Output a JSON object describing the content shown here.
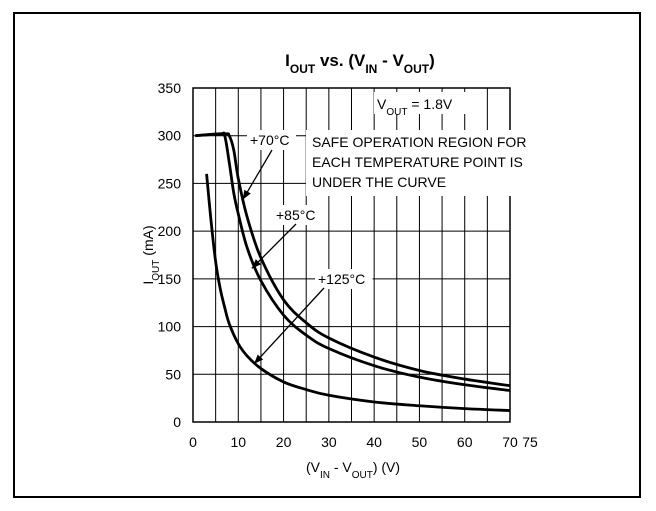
{
  "chart_data": {
    "type": "line",
    "title": {
      "segments": [
        {
          "t": "I",
          "sub": false
        },
        {
          "t": "OUT",
          "sub": true
        },
        {
          "t": " vs. (V",
          "sub": false
        },
        {
          "t": "IN",
          "sub": true
        },
        {
          "t": " - V",
          "sub": false
        },
        {
          "t": "OUT",
          "sub": true
        },
        {
          "t": ")",
          "sub": false
        }
      ]
    },
    "xlabel": {
      "segments": [
        {
          "t": "(V",
          "sub": false
        },
        {
          "t": "IN",
          "sub": true
        },
        {
          "t": " - V",
          "sub": false
        },
        {
          "t": "OUT",
          "sub": true
        },
        {
          "t": ") (V)",
          "sub": false
        }
      ]
    },
    "ylabel": {
      "segments": [
        {
          "t": "I",
          "sub": false
        },
        {
          "t": "OUT",
          "sub": true
        },
        {
          "t": " (mA)",
          "sub": false
        }
      ]
    },
    "xlim": [
      0,
      70
    ],
    "ylim": [
      0,
      350
    ],
    "x_tick_labels": [
      "0",
      "10",
      "20",
      "30",
      "40",
      "50",
      "60",
      "70",
      "75"
    ],
    "y_ticks": [
      0,
      50,
      100,
      150,
      200,
      250,
      300,
      350
    ],
    "grid": true,
    "vout_note": {
      "segments": [
        {
          "t": "V",
          "sub": false
        },
        {
          "t": "OUT",
          "sub": true
        },
        {
          "t": " = 1.8V",
          "sub": false
        }
      ]
    },
    "region_note": [
      "SAFE OPERATION REGION FOR",
      "EACH TEMPERATURE POINT IS",
      "UNDER THE CURVE"
    ],
    "series": [
      {
        "name": "+70°C",
        "x": [
          0.5,
          7,
          8,
          9,
          10,
          12,
          15,
          20,
          25,
          30,
          40,
          50,
          60,
          70
        ],
        "y": [
          300,
          302,
          300,
          285,
          255,
          214,
          172,
          128,
          104,
          88,
          68,
          54,
          45,
          38
        ]
      },
      {
        "name": "+85°C",
        "x": [
          0.5,
          6,
          7,
          8,
          9,
          10,
          12,
          15,
          20,
          25,
          30,
          40,
          50,
          60,
          70
        ],
        "y": [
          300,
          302,
          300,
          272,
          240,
          218,
          182,
          148,
          112,
          91,
          77,
          59,
          47,
          39,
          33
        ]
      },
      {
        "name": "+125°C",
        "x": [
          3,
          4,
          5,
          6,
          7,
          8,
          10,
          12,
          15,
          20,
          25,
          30,
          40,
          50,
          60,
          70
        ],
        "y": [
          260,
          210,
          168,
          140,
          120,
          103,
          82,
          69,
          56,
          42,
          34,
          28,
          21,
          17,
          14,
          12
        ]
      }
    ],
    "annotations": [
      {
        "label": "+70°C",
        "points_to": {
          "x": 11,
          "y": 233
        }
      },
      {
        "label": "+85°C",
        "points_to": {
          "x": 13,
          "y": 161
        }
      },
      {
        "label": "+125°C",
        "points_to": {
          "x": 13.5,
          "y": 61
        }
      }
    ]
  }
}
